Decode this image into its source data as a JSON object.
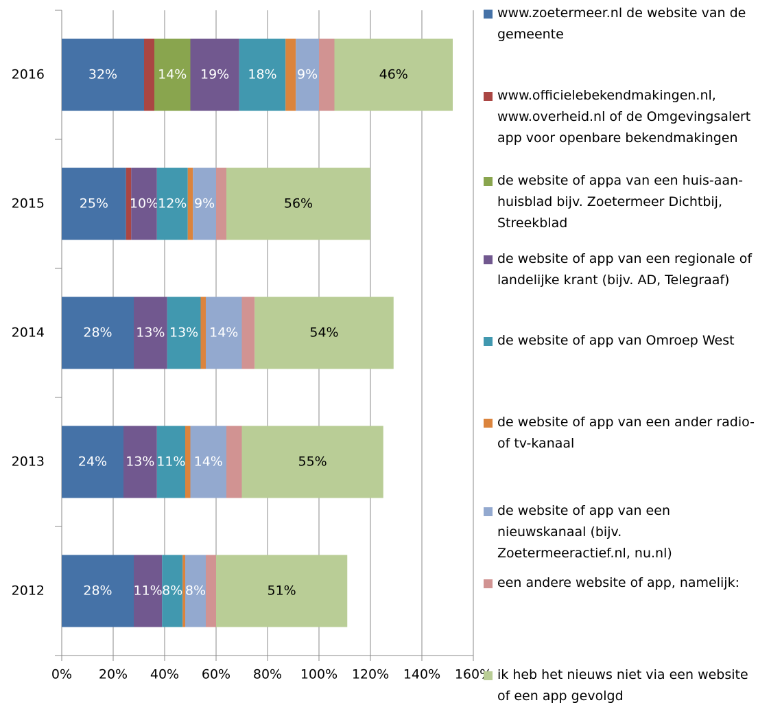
{
  "chart_data": {
    "type": "stacked-barh",
    "categories": [
      "2016",
      "2015",
      "2014",
      "2013",
      "2012"
    ],
    "series": [
      {
        "name": "www.zoetermeer.nl de website van de gemeente",
        "color": "#4572a7",
        "values": [
          32,
          25,
          28,
          24,
          28
        ],
        "value_labels": [
          "32%",
          "25%",
          "28%",
          "24%",
          "28%"
        ]
      },
      {
        "name": "www.officielebekendmakingen.nl, www.overheid.nl of de Omgevingsalert app voor openbare bekendmakingen",
        "color": "#aa4643",
        "values": [
          4,
          2,
          null,
          null,
          null
        ],
        "value_labels": [
          null,
          null,
          null,
          null,
          null
        ]
      },
      {
        "name": "de website of appa van een huis-aan-huisblad bijv. Zoetermeer Dichtbij, Streekblad",
        "color": "#89a54e",
        "values": [
          14,
          null,
          null,
          null,
          null
        ],
        "value_labels": [
          "14%",
          null,
          null,
          null,
          null
        ]
      },
      {
        "name": "de website of app van een regionale of landelijke krant (bijv. AD, Telegraaf)",
        "color": "#71588f",
        "values": [
          19,
          10,
          13,
          13,
          11
        ],
        "value_labels": [
          "19%",
          "10%",
          "13%",
          "13%",
          "11%"
        ]
      },
      {
        "name": "de website of app van Omroep West",
        "color": "#4198af",
        "values": [
          18,
          12,
          13,
          11,
          8
        ],
        "value_labels": [
          "18%",
          "12%",
          "13%",
          "11%",
          "8%"
        ]
      },
      {
        "name": "de website of app van een ander radio- of tv-kanaal",
        "color": "#db843d",
        "values": [
          4,
          2,
          2,
          2,
          1
        ],
        "value_labels": [
          null,
          null,
          null,
          null,
          null
        ]
      },
      {
        "name": "de website of app van een nieuwskanaal (bijv. Zoetermeeractief.nl, nu.nl)",
        "color": "#93a9cf",
        "values": [
          9,
          9,
          14,
          14,
          8
        ],
        "value_labels": [
          "9%",
          "9%",
          "14%",
          "14%",
          "8%"
        ]
      },
      {
        "name": "een andere website of app, namelijk:",
        "color": "#d19392",
        "values": [
          6,
          4,
          5,
          6,
          4
        ],
        "value_labels": [
          null,
          null,
          null,
          null,
          null
        ]
      },
      {
        "name": "ik heb het nieuws niet via een website of een app gevolgd",
        "color": "#b9cd96",
        "values": [
          46,
          56,
          54,
          55,
          51
        ],
        "value_labels": [
          "46%",
          "56%",
          "54%",
          "55%",
          "51%"
        ]
      }
    ],
    "xlim": [
      0,
      160
    ],
    "xticks": [
      {
        "value": 0,
        "label": "0%"
      },
      {
        "value": 20,
        "label": "20%"
      },
      {
        "value": 40,
        "label": "40%"
      },
      {
        "value": 60,
        "label": "60%"
      },
      {
        "value": 80,
        "label": "80%"
      },
      {
        "value": 100,
        "label": "100%"
      },
      {
        "value": 120,
        "label": "120%"
      },
      {
        "value": 140,
        "label": "140%"
      },
      {
        "value": 160,
        "label": "160%"
      }
    ],
    "grid": true,
    "legend": "right"
  }
}
